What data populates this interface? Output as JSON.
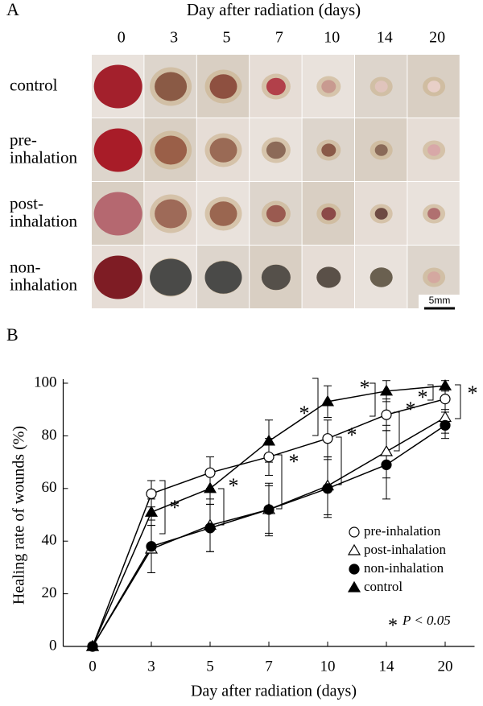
{
  "panel_a": {
    "label": "A",
    "title": "Day after radiation (days)",
    "columns": [
      "0",
      "3",
      "5",
      "7",
      "10",
      "14",
      "20"
    ],
    "rows": [
      [
        "control"
      ],
      [
        "pre-",
        "inhalation"
      ],
      [
        "post-",
        "inhalation"
      ],
      [
        "non-",
        "inhalation"
      ]
    ],
    "scale_bar": "5mm"
  },
  "chart_data": {
    "type": "line",
    "label": "B",
    "xlabel": "Day after radiation (days)",
    "ylabel": "Healing rate of wounds (%)",
    "categories": [
      "0",
      "3",
      "5",
      "7",
      "10",
      "14",
      "20"
    ],
    "ylim": [
      0,
      100
    ],
    "yticks": [
      0,
      20,
      40,
      60,
      80,
      100
    ],
    "legend": "lower right",
    "series": [
      {
        "name": "pre-inhalation",
        "marker": "circle",
        "filled": false,
        "color": "#000000",
        "values": [
          0,
          58,
          66,
          72,
          79,
          88,
          94
        ],
        "errors": [
          0,
          5,
          6,
          7,
          7,
          6,
          4
        ]
      },
      {
        "name": "post-inhalation",
        "marker": "triangle",
        "filled": false,
        "color": "#000000",
        "values": [
          0,
          37,
          46,
          52,
          61,
          74,
          87
        ],
        "errors": [
          0,
          9,
          10,
          10,
          11,
          10,
          6
        ]
      },
      {
        "name": "non-inhalation",
        "marker": "circle",
        "filled": true,
        "color": "#000000",
        "values": [
          0,
          38,
          45,
          52,
          60,
          69,
          84
        ],
        "errors": [
          0,
          10,
          9,
          9,
          11,
          13,
          5
        ]
      },
      {
        "name": "control",
        "marker": "triangle",
        "filled": true,
        "color": "#000000",
        "values": [
          0,
          51,
          60,
          78,
          93,
          97,
          99
        ],
        "errors": [
          0,
          5,
          6,
          8,
          6,
          4,
          2
        ]
      }
    ],
    "significance": {
      "mark": "*",
      "legend": "P < 0.05"
    }
  }
}
